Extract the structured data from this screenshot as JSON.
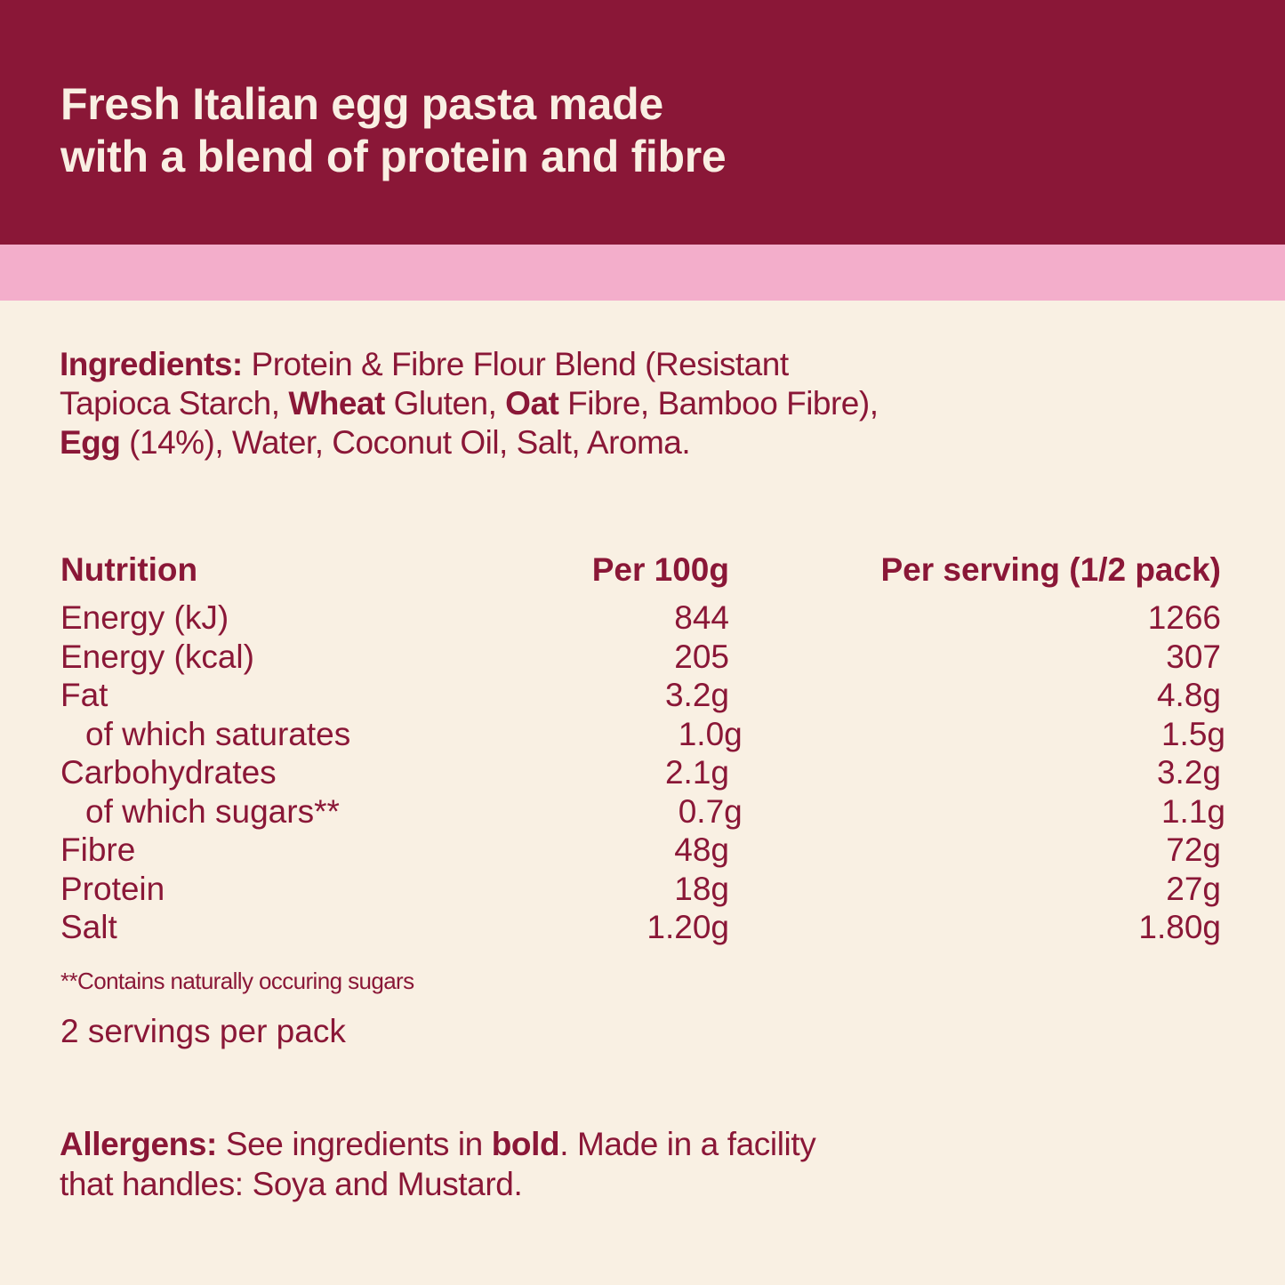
{
  "colors": {
    "maroon": "#8a1737",
    "pink": "#f3aecb",
    "cream": "#f9f0e3"
  },
  "header": {
    "line1": "Fresh Italian egg pasta made",
    "line2": "with a blend of protein and fibre"
  },
  "ingredients": {
    "label": "Ingredients:",
    "t1": " Protein & Fibre Flour Blend (Resistant Tapioca Starch, ",
    "b1": "Wheat",
    "t2": " Gluten, ",
    "b2": "Oat",
    "t3": " Fibre, Bamboo Fibre), ",
    "b3": "Egg",
    "t4": " (14%), Water, Coconut Oil, Salt, Aroma."
  },
  "nutrition": {
    "headers": {
      "label": "Nutrition",
      "per100": "Per 100g",
      "perServing": "Per serving (1/2 pack)"
    },
    "rows": [
      {
        "label": "Energy (kJ)",
        "per100": "844",
        "perServing": "1266"
      },
      {
        "label": "Energy (kcal)",
        "per100": "205",
        "perServing": "307"
      },
      {
        "label": "Fat",
        "per100": "3.2g",
        "perServing": "4.8g"
      },
      {
        "label": "of which saturates",
        "per100": "1.0g",
        "perServing": "1.5g"
      },
      {
        "label": "Carbohydrates",
        "per100": "2.1g",
        "perServing": "3.2g"
      },
      {
        "label": "of which sugars**",
        "per100": "0.7g",
        "perServing": "1.1g"
      },
      {
        "label": "Fibre",
        "per100": "48g",
        "perServing": "72g"
      },
      {
        "label": "Protein",
        "per100": "18g",
        "perServing": "27g"
      },
      {
        "label": "Salt",
        "per100": "1.20g",
        "perServing": "1.80g"
      }
    ]
  },
  "footnote": "**Contains naturally occuring sugars",
  "servings": "2 servings per pack",
  "allergens": {
    "label": "Allergens:",
    "t1": " See ingredients in ",
    "b1": "bold",
    "t2": ". Made in a facility that handles: Soya and Mustard."
  }
}
